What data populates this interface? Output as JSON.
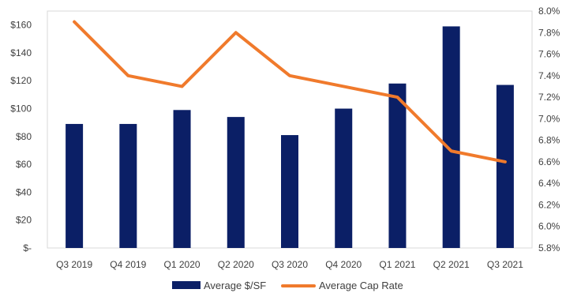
{
  "chart_data": {
    "type": "bar",
    "categories": [
      "Q3 2019",
      "Q4 2019",
      "Q1 2020",
      "Q2 2020",
      "Q3 2020",
      "Q4 2020",
      "Q1 2021",
      "Q2 2021",
      "Q3 2021"
    ],
    "series": [
      {
        "name": "Average $/SF",
        "type": "bar",
        "axis": "left",
        "color": "#0b1f66",
        "values": [
          89,
          89,
          99,
          94,
          81,
          100,
          118,
          159,
          117
        ]
      },
      {
        "name": "Average Cap Rate",
        "type": "line",
        "axis": "right",
        "color": "#f07a2c",
        "values": [
          7.9,
          7.4,
          7.3,
          7.8,
          7.4,
          7.3,
          7.2,
          6.7,
          6.6
        ]
      }
    ],
    "left_axis": {
      "ylim": [
        0,
        170
      ],
      "ticks": [
        0,
        20,
        40,
        60,
        80,
        100,
        120,
        140,
        160
      ],
      "tick_labels": [
        "$-",
        "$20",
        "$40",
        "$60",
        "$80",
        "$100",
        "$120",
        "$140",
        "$160"
      ]
    },
    "right_axis": {
      "ylim": [
        5.8,
        8.0
      ],
      "ticks": [
        5.8,
        6.0,
        6.2,
        6.4,
        6.6,
        6.8,
        7.0,
        7.2,
        7.4,
        7.6,
        7.8,
        8.0
      ],
      "tick_labels": [
        "5.8%",
        "6.0%",
        "6.2%",
        "6.4%",
        "6.6%",
        "6.8%",
        "7.0%",
        "7.2%",
        "7.4%",
        "7.6%",
        "7.8%",
        "8.0%"
      ]
    },
    "legend": {
      "placement": "bottom",
      "labels": [
        "Average $/SF",
        "Average Cap Rate"
      ]
    },
    "grid": false,
    "colors": {
      "bar": "#0b1f66",
      "line": "#f07a2c",
      "axis": "#d9d9d9",
      "text": "#404040"
    }
  }
}
